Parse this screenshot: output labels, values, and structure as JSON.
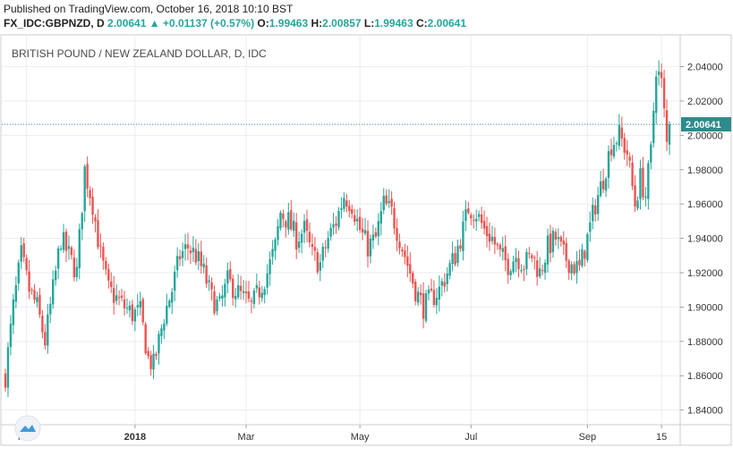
{
  "header": {
    "published": "Published on TradingView.com, October 16, 2018 10:10 BST",
    "symbol": "FX_IDC:GBPNZD, D",
    "last": "2.00641",
    "change": "+0.01137 (+0.57%)",
    "o_label": "O:",
    "o": "1.99463",
    "h_label": "H:",
    "h": "2.00857",
    "l_label": "L:",
    "l": "1.99463",
    "c_label": "C:",
    "c": "2.00641",
    "up_arrow": "▲"
  },
  "chart_data": {
    "type": "candlestick",
    "title": "BRITISH POUND / NEW ZEALAND DOLLAR, D, IDC",
    "ylim": [
      1.832,
      2.058
    ],
    "y_ticks": [
      "2.04000",
      "2.02000",
      "2.00000",
      "1.98000",
      "1.96000",
      "1.94000",
      "1.92000",
      "1.90000",
      "1.88000",
      "1.86000",
      "1.84000"
    ],
    "x_ticks": [
      {
        "label": "Nov",
        "index": 8
      },
      {
        "label": "2018",
        "index": 49
      },
      {
        "label": "Mar",
        "index": 91
      },
      {
        "label": "May",
        "index": 134
      },
      {
        "label": "Jul",
        "index": 176
      },
      {
        "label": "Sep",
        "index": 220
      },
      {
        "label": "15",
        "index": 248
      }
    ],
    "last_price": 2.00641,
    "last_price_label": "2.00641",
    "colors": {
      "up": "#26a69a",
      "down": "#ef5350",
      "grid": "#e9edf2",
      "last": "#2e8b8b"
    },
    "close_path": [
      [
        0,
        1.86
      ],
      [
        3,
        1.9
      ],
      [
        6,
        1.93
      ],
      [
        9,
        1.91
      ],
      [
        12,
        1.9
      ],
      [
        15,
        1.88
      ],
      [
        18,
        1.91
      ],
      [
        21,
        1.94
      ],
      [
        24,
        1.93
      ],
      [
        27,
        1.92
      ],
      [
        30,
        1.98
      ],
      [
        33,
        1.96
      ],
      [
        36,
        1.93
      ],
      [
        39,
        1.91
      ],
      [
        42,
        1.905
      ],
      [
        45,
        1.9
      ],
      [
        48,
        1.896
      ],
      [
        51,
        1.897
      ],
      [
        54,
        1.87
      ],
      [
        56,
        1.866
      ],
      [
        58,
        1.88
      ],
      [
        60,
        1.895
      ],
      [
        63,
        1.91
      ],
      [
        66,
        1.93
      ],
      [
        69,
        1.935
      ],
      [
        72,
        1.93
      ],
      [
        75,
        1.92
      ],
      [
        78,
        1.905
      ],
      [
        81,
        1.9
      ],
      [
        84,
        1.915
      ],
      [
        87,
        1.91
      ],
      [
        90,
        1.905
      ],
      [
        93,
        1.9
      ],
      [
        96,
        1.91
      ],
      [
        99,
        1.92
      ],
      [
        102,
        1.935
      ],
      [
        104,
        1.955
      ],
      [
        107,
        1.95
      ],
      [
        110,
        1.94
      ],
      [
        113,
        1.945
      ],
      [
        116,
        1.93
      ],
      [
        119,
        1.925
      ],
      [
        122,
        1.94
      ],
      [
        125,
        1.95
      ],
      [
        128,
        1.965
      ],
      [
        131,
        1.96
      ],
      [
        134,
        1.945
      ],
      [
        137,
        1.935
      ],
      [
        140,
        1.94
      ],
      [
        143,
        1.96
      ],
      [
        146,
        1.955
      ],
      [
        149,
        1.94
      ],
      [
        152,
        1.925
      ],
      [
        155,
        1.91
      ],
      [
        158,
        1.9
      ],
      [
        161,
        1.905
      ],
      [
        164,
        1.91
      ],
      [
        167,
        1.92
      ],
      [
        170,
        1.93
      ],
      [
        173,
        1.945
      ],
      [
        175,
        1.958
      ],
      [
        178,
        1.955
      ],
      [
        181,
        1.945
      ],
      [
        184,
        1.94
      ],
      [
        187,
        1.93
      ],
      [
        190,
        1.925
      ],
      [
        193,
        1.93
      ],
      [
        196,
        1.925
      ],
      [
        199,
        1.93
      ],
      [
        202,
        1.92
      ],
      [
        205,
        1.935
      ],
      [
        208,
        1.94
      ],
      [
        211,
        1.93
      ],
      [
        214,
        1.925
      ],
      [
        217,
        1.922
      ],
      [
        220,
        1.94
      ],
      [
        223,
        1.96
      ],
      [
        226,
        1.975
      ],
      [
        229,
        1.995
      ],
      [
        232,
        2.0
      ],
      [
        235,
        1.99
      ],
      [
        238,
        1.96
      ],
      [
        240,
        1.975
      ],
      [
        242,
        1.965
      ],
      [
        244,
        1.99
      ],
      [
        246,
        2.04
      ],
      [
        248,
        2.03
      ],
      [
        250,
        1.995
      ],
      [
        251,
        2.00641
      ]
    ]
  }
}
